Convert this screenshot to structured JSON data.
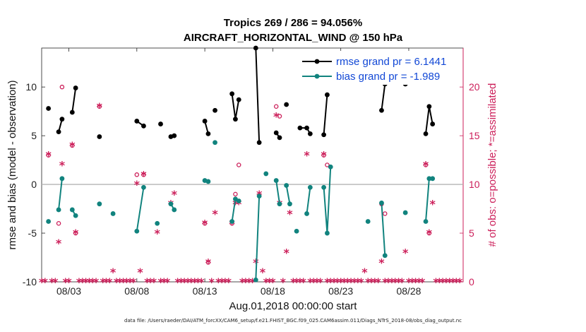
{
  "chart_data": {
    "type": "line",
    "title": "Tropics 269 / 286 = 94.056%",
    "subtitle": "AIRCRAFT_HORIZONTAL_WIND @ 150 hPa",
    "xlabel": "Aug.01,2018 00:00:00 start",
    "ylabel_left": "rmse and bias (model - observation)",
    "ylabel_right": "# of obs: o=possible; *=assimilated",
    "footnote": "data file: /Users/raeder/DAI/ATM_forcXX/CAM6_setup/f.e21.FHIST_BGC.f09_025.CAM6assim.011/Diags_NTrS_2018-08/obs_diag_output.nc",
    "xlim": [
      1,
      32
    ],
    "ylim_left": [
      -10,
      14
    ],
    "ylim_right": [
      0,
      24
    ],
    "x_ticks": [
      3,
      8,
      13,
      18,
      23,
      28
    ],
    "x_tick_labels": [
      "08/03",
      "08/08",
      "08/13",
      "08/18",
      "08/23",
      "08/28"
    ],
    "y_left_ticks": [
      -10,
      -5,
      0,
      5,
      10
    ],
    "y_right_ticks": [
      0,
      5,
      10,
      15,
      20
    ],
    "legend_position": "top-right",
    "series": [
      {
        "name": "rmse",
        "legend_label": "rmse grand pr = 6.1441",
        "color": "#000000",
        "axis": "left",
        "segments": [
          [
            [
              1.5,
              7.8
            ]
          ],
          [
            [
              2.25,
              5.4
            ],
            [
              2.5,
              6.7
            ]
          ],
          [
            [
              3.25,
              7.4
            ],
            [
              3.5,
              9.9
            ]
          ],
          [
            [
              5.25,
              4.9
            ]
          ],
          [
            [
              8.0,
              6.5
            ],
            [
              8.5,
              6.0
            ]
          ],
          [
            [
              9.75,
              6.2
            ]
          ],
          [
            [
              10.5,
              4.9
            ],
            [
              10.75,
              5.0
            ]
          ],
          [
            [
              13.0,
              6.5
            ],
            [
              13.25,
              5.2
            ]
          ],
          [
            [
              13.75,
              7.6
            ]
          ],
          [
            [
              15.0,
              9.3
            ],
            [
              15.25,
              6.7
            ],
            [
              15.5,
              8.7
            ]
          ],
          [
            [
              16.75,
              14.0
            ],
            [
              17.0,
              4.3
            ]
          ],
          [
            [
              18.25,
              5.3
            ],
            [
              18.5,
              4.8
            ]
          ],
          [
            [
              19.0,
              8.2
            ]
          ],
          [
            [
              20.0,
              5.8
            ],
            [
              20.5,
              5.8
            ],
            [
              20.75,
              5.2
            ]
          ],
          [
            [
              21.75,
              5.1
            ],
            [
              22.0,
              9.2
            ]
          ],
          [
            [
              26.0,
              7.6
            ],
            [
              26.25,
              10.3
            ]
          ],
          [
            [
              27.75,
              10.3
            ]
          ],
          [
            [
              29.25,
              5.2
            ],
            [
              29.5,
              8.0
            ],
            [
              29.75,
              6.2
            ]
          ]
        ]
      },
      {
        "name": "bias",
        "legend_label": "bias grand pr = -1.989",
        "color": "#11837e",
        "axis": "left",
        "segments": [
          [
            [
              1.5,
              -3.8
            ]
          ],
          [
            [
              2.25,
              -2.6
            ],
            [
              2.5,
              0.6
            ]
          ],
          [
            [
              3.25,
              -2.6
            ],
            [
              3.5,
              -3.2
            ]
          ],
          [
            [
              5.25,
              -2.0
            ]
          ],
          [
            [
              6.25,
              -3.0
            ]
          ],
          [
            [
              8.0,
              -4.8
            ],
            [
              8.5,
              -0.3
            ]
          ],
          [
            [
              9.5,
              -4.0
            ]
          ],
          [
            [
              10.5,
              -2.0
            ],
            [
              10.75,
              -2.6
            ]
          ],
          [
            [
              13.0,
              0.4
            ],
            [
              13.25,
              0.3
            ]
          ],
          [
            [
              13.75,
              4.3
            ]
          ],
          [
            [
              15.0,
              -3.8
            ],
            [
              15.25,
              -1.5
            ],
            [
              15.5,
              -1.7
            ]
          ],
          [
            [
              16.75,
              -9.8
            ],
            [
              17.0,
              -1.2
            ]
          ],
          [
            [
              17.5,
              1.1
            ]
          ],
          [
            [
              18.25,
              0.4
            ],
            [
              18.5,
              -2.0
            ]
          ],
          [
            [
              19.0,
              -0.1
            ],
            [
              19.25,
              -2.0
            ]
          ],
          [
            [
              19.75,
              -4.8
            ]
          ],
          [
            [
              20.5,
              -3.0
            ],
            [
              20.75,
              -0.3
            ]
          ],
          [
            [
              21.75,
              -0.3
            ],
            [
              22.0,
              -5.0
            ],
            [
              22.25,
              1.8
            ]
          ],
          [
            [
              25.0,
              -3.8
            ]
          ],
          [
            [
              26.0,
              -1.9
            ],
            [
              26.25,
              -7.3
            ]
          ],
          [
            [
              27.75,
              -2.9
            ]
          ],
          [
            [
              29.25,
              -3.8
            ],
            [
              29.5,
              0.6
            ],
            [
              29.75,
              0.6
            ]
          ]
        ]
      }
    ],
    "obs_possible": {
      "marker": "o",
      "color": "#cc1f5a",
      "axis": "right",
      "points": [
        [
          1.5,
          13
        ],
        [
          2.25,
          6
        ],
        [
          2.5,
          20
        ],
        [
          3.25,
          14
        ],
        [
          3.5,
          5
        ],
        [
          5.25,
          18
        ],
        [
          8.0,
          11
        ],
        [
          8.5,
          11
        ],
        [
          13.0,
          6
        ],
        [
          13.25,
          2
        ],
        [
          15.0,
          6
        ],
        [
          15.25,
          9
        ],
        [
          15.5,
          12
        ],
        [
          18.25,
          18
        ],
        [
          18.5,
          17
        ],
        [
          21.75,
          13
        ],
        [
          22.0,
          12
        ],
        [
          26.0,
          8
        ],
        [
          26.25,
          7
        ],
        [
          29.25,
          12
        ],
        [
          29.5,
          5
        ]
      ]
    },
    "obs_assimilated": {
      "marker": "*",
      "color": "#cc1f5a",
      "axis": "right",
      "points": [
        [
          1.0,
          0
        ],
        [
          1.25,
          0
        ],
        [
          1.5,
          13
        ],
        [
          1.75,
          0
        ],
        [
          2.0,
          0
        ],
        [
          2.25,
          4
        ],
        [
          2.5,
          12
        ],
        [
          2.75,
          0
        ],
        [
          3.0,
          0
        ],
        [
          3.25,
          14
        ],
        [
          3.5,
          5
        ],
        [
          3.75,
          0
        ],
        [
          4.0,
          0
        ],
        [
          4.25,
          0
        ],
        [
          4.5,
          0
        ],
        [
          4.75,
          0
        ],
        [
          5.0,
          0
        ],
        [
          5.25,
          18
        ],
        [
          5.5,
          0
        ],
        [
          5.75,
          0
        ],
        [
          6.0,
          0
        ],
        [
          6.25,
          1
        ],
        [
          6.5,
          0
        ],
        [
          6.75,
          0
        ],
        [
          7.0,
          0
        ],
        [
          7.25,
          0
        ],
        [
          7.5,
          0
        ],
        [
          7.75,
          0
        ],
        [
          8.0,
          10
        ],
        [
          8.25,
          1
        ],
        [
          8.5,
          11
        ],
        [
          8.75,
          0
        ],
        [
          9.0,
          0
        ],
        [
          9.25,
          0
        ],
        [
          9.5,
          5
        ],
        [
          9.75,
          0
        ],
        [
          10.0,
          0
        ],
        [
          10.25,
          0
        ],
        [
          10.5,
          8
        ],
        [
          10.75,
          9
        ],
        [
          11.0,
          0
        ],
        [
          11.25,
          0
        ],
        [
          11.5,
          0
        ],
        [
          11.75,
          0
        ],
        [
          12.0,
          0
        ],
        [
          12.25,
          0
        ],
        [
          12.5,
          0
        ],
        [
          12.75,
          0
        ],
        [
          13.0,
          6
        ],
        [
          13.25,
          2
        ],
        [
          13.5,
          0
        ],
        [
          13.75,
          7
        ],
        [
          14.0,
          0
        ],
        [
          14.25,
          0
        ],
        [
          14.5,
          0
        ],
        [
          14.75,
          0
        ],
        [
          15.0,
          6
        ],
        [
          15.25,
          8
        ],
        [
          15.5,
          8
        ],
        [
          15.75,
          0
        ],
        [
          16.0,
          0
        ],
        [
          16.25,
          0
        ],
        [
          16.5,
          0
        ],
        [
          16.75,
          2
        ],
        [
          17.0,
          9
        ],
        [
          17.25,
          1
        ],
        [
          17.5,
          0
        ],
        [
          17.75,
          0
        ],
        [
          18.0,
          0
        ],
        [
          18.25,
          17
        ],
        [
          18.5,
          8
        ],
        [
          18.75,
          0
        ],
        [
          19.0,
          3
        ],
        [
          19.25,
          7
        ],
        [
          19.5,
          0
        ],
        [
          19.75,
          0
        ],
        [
          20.0,
          0
        ],
        [
          20.25,
          0
        ],
        [
          20.5,
          13
        ],
        [
          20.75,
          0
        ],
        [
          21.0,
          0
        ],
        [
          21.25,
          0
        ],
        [
          21.5,
          0
        ],
        [
          21.75,
          13
        ],
        [
          22.0,
          0
        ],
        [
          22.25,
          0
        ],
        [
          22.5,
          0
        ],
        [
          22.75,
          0
        ],
        [
          23.0,
          0
        ],
        [
          23.25,
          0
        ],
        [
          23.5,
          0
        ],
        [
          23.75,
          0
        ],
        [
          24.0,
          0
        ],
        [
          24.25,
          0
        ],
        [
          24.5,
          0
        ],
        [
          24.75,
          1
        ],
        [
          25.0,
          0
        ],
        [
          25.25,
          0
        ],
        [
          25.5,
          0
        ],
        [
          25.75,
          0
        ],
        [
          26.0,
          2
        ],
        [
          26.25,
          0
        ],
        [
          26.5,
          0
        ],
        [
          26.75,
          0
        ],
        [
          27.0,
          0
        ],
        [
          27.25,
          0
        ],
        [
          27.5,
          0
        ],
        [
          27.75,
          3
        ],
        [
          28.0,
          0
        ],
        [
          28.25,
          0
        ],
        [
          28.5,
          0
        ],
        [
          28.75,
          0
        ],
        [
          29.0,
          0
        ],
        [
          29.25,
          12
        ],
        [
          29.5,
          5
        ],
        [
          29.75,
          8
        ],
        [
          30.0,
          0
        ],
        [
          30.25,
          0
        ],
        [
          30.5,
          0
        ],
        [
          30.75,
          0
        ],
        [
          31.0,
          0
        ],
        [
          31.25,
          0
        ],
        [
          31.5,
          0
        ],
        [
          31.75,
          0
        ]
      ]
    }
  }
}
